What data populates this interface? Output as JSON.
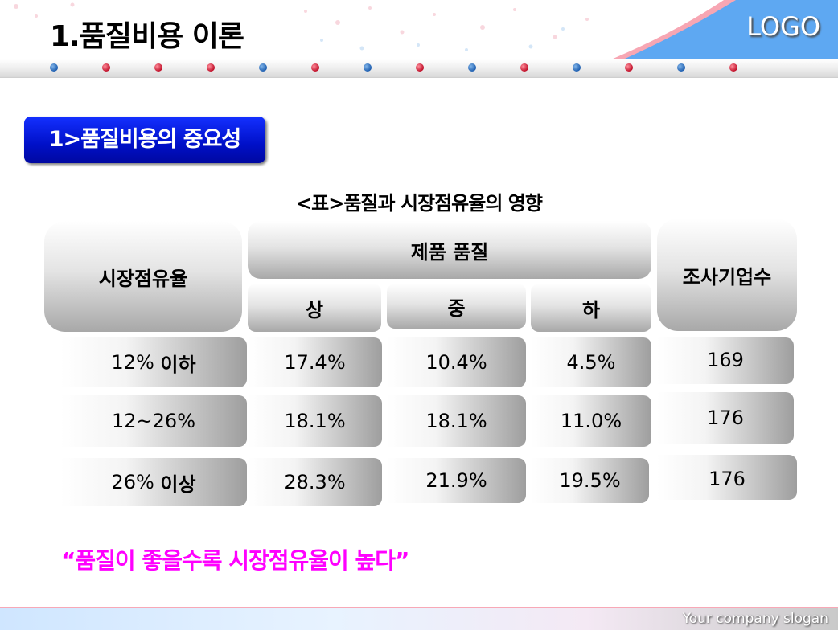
{
  "slide": {
    "title": "1.품질비용 이론",
    "logo": "LOGO",
    "section_label": "1>품질비용의 중요성",
    "table_caption": "<표>품질과 시장점유율의 영향",
    "quote": "“품질이 좋을수록 시장점유율이 높다”",
    "slogan": "Your company slogan"
  },
  "table": {
    "col_market": "시장점유율",
    "col_quality": "제품 품질",
    "col_companies": "조사기업수",
    "quality_levels": [
      "상",
      "중",
      "하"
    ],
    "rows": [
      {
        "range_num": "12%",
        "range_word": "이하",
        "high": "17.4%",
        "mid": "10.4%",
        "low": "4.5%",
        "companies": "169"
      },
      {
        "range_num": "12~26%",
        "range_word": "",
        "high": "18.1%",
        "mid": "18.1%",
        "low": "11.0%",
        "companies": "176"
      },
      {
        "range_num": "26%",
        "range_word": "이상",
        "high": "28.3%",
        "mid": "21.9%",
        "low": "19.5%",
        "companies": "176"
      }
    ]
  },
  "colors": {
    "title": "#000000",
    "section_bg": "#0010c8",
    "quote": "#ff00ff",
    "header_dots": [
      "#1f5fb0",
      "#c0102a"
    ]
  }
}
